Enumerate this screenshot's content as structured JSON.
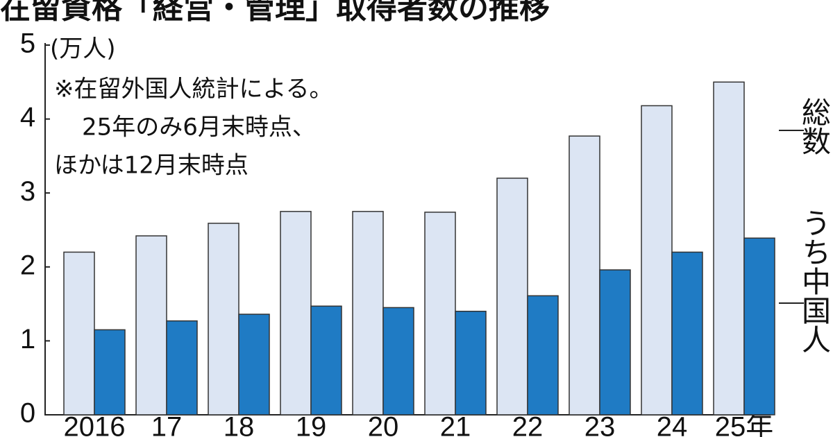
{
  "chart_data": {
    "type": "bar",
    "title": "在留資格「経営・管理」取得者数の推移",
    "unit": "(万人)",
    "notes": [
      "※在留外国人統計による。",
      "25年のみ6月末時点、",
      "ほかは12月末時点"
    ],
    "categories": [
      "2016",
      "17",
      "18",
      "19",
      "20",
      "21",
      "22",
      "23",
      "24",
      "25年"
    ],
    "series": [
      {
        "name": "総数",
        "color": "#dce5f3",
        "values": [
          2.2,
          2.42,
          2.59,
          2.75,
          2.75,
          2.74,
          3.2,
          3.77,
          4.18,
          4.5
        ]
      },
      {
        "name": "うち中国人",
        "color": "#1f7bc4",
        "values": [
          1.15,
          1.27,
          1.36,
          1.47,
          1.45,
          1.4,
          1.61,
          1.96,
          2.2,
          2.39
        ]
      }
    ],
    "ylim": [
      0,
      5
    ],
    "yticks": [
      0,
      1,
      2,
      3,
      4,
      5
    ],
    "grid": false
  }
}
